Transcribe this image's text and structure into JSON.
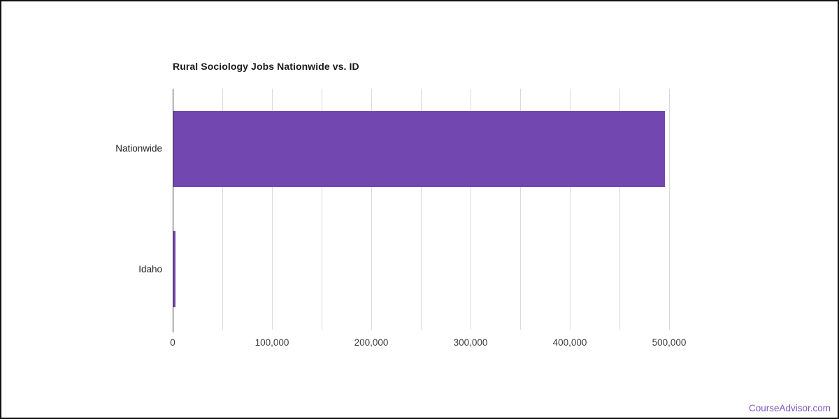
{
  "page": {
    "watermark": "CourseAdvisor.com"
  },
  "colors": {
    "bar": "#7347B0",
    "watermark": "#7E57C2",
    "gridline": "#DADADA",
    "axis_line": "#333333",
    "tick_text": "#3D3D3D",
    "category_text": "#222222",
    "title_text": "#1A1A1A",
    "background": "#FFFFFF",
    "frame_border": "#111111"
  },
  "chart_data": {
    "type": "bar",
    "orientation": "horizontal",
    "title": "Rural Sociology Jobs Nationwide vs. ID",
    "categories": [
      "Nationwide",
      "Idaho"
    ],
    "values": [
      495000,
      2000
    ],
    "series_name": "Jobs",
    "xlabel": "",
    "ylabel": "",
    "xlim": [
      0,
      500000
    ],
    "x_ticks": [
      0,
      100000,
      200000,
      300000,
      400000,
      500000
    ],
    "x_tick_labels": [
      "0",
      "100,000",
      "200,000",
      "300,000",
      "400,000",
      "500,000"
    ],
    "gridline_interval": 50000,
    "grid": true,
    "legend_position": "none",
    "bar_color": "#7347B0"
  }
}
